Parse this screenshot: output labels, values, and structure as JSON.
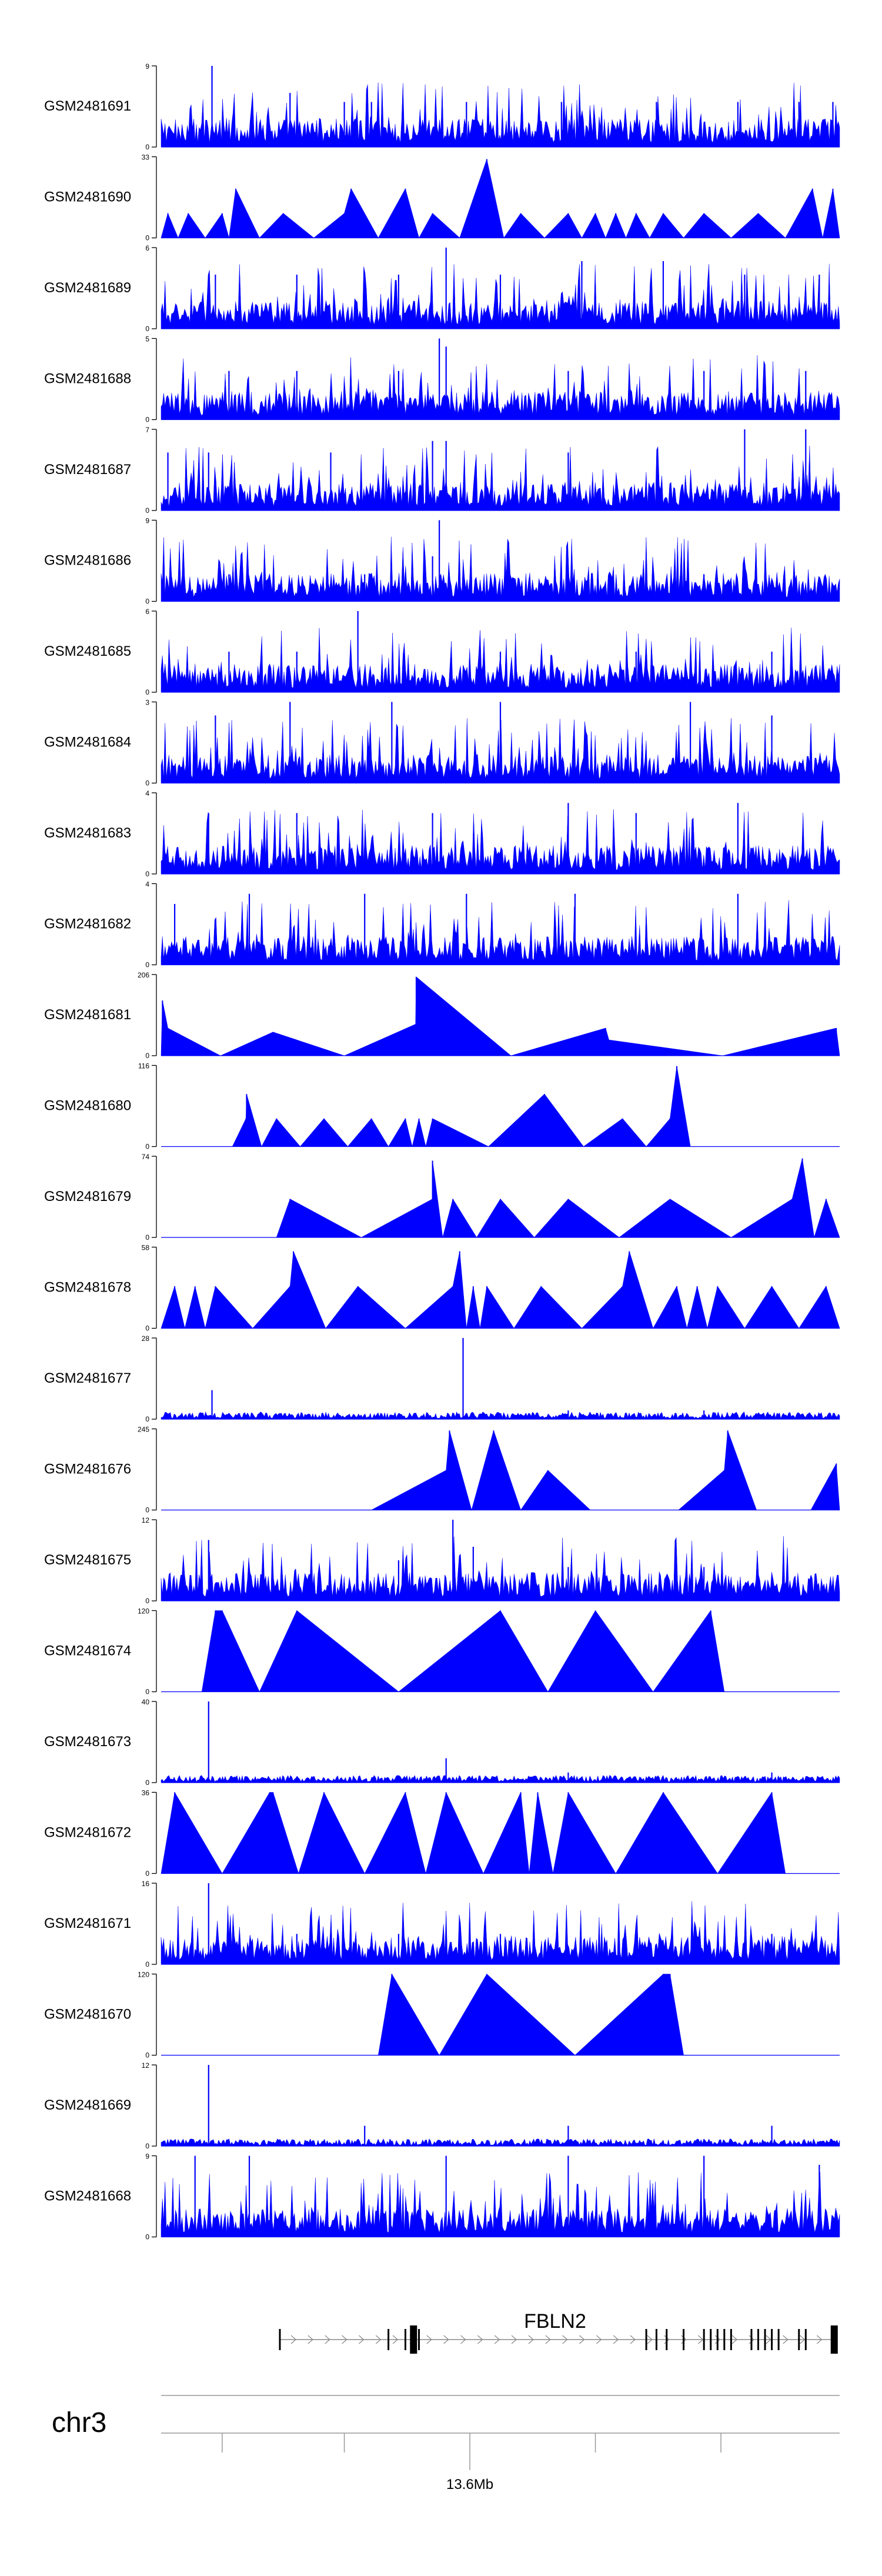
{
  "chart_data": {
    "type": "area",
    "fill_color": "#0000ff",
    "axis_color": "#000000",
    "tracks": [
      {
        "name": "GSM2481691",
        "ymax_label": "9",
        "ymin_label": "0",
        "ymax": 9,
        "pattern": "dense",
        "peaks": [
          [
            0.075,
            9
          ],
          [
            0.19,
            6
          ],
          [
            0.27,
            5
          ],
          [
            0.31,
            5
          ],
          [
            0.45,
            5
          ],
          [
            0.59,
            5
          ],
          [
            0.73,
            5
          ],
          [
            0.85,
            5
          ],
          [
            0.94,
            5
          ],
          [
            0.99,
            5
          ]
        ]
      },
      {
        "name": "GSM2481690",
        "ymax_label": "33",
        "ymin_label": "0",
        "ymax": 33,
        "pattern": "triangles",
        "peaks": [
          [
            0.01,
            10
          ],
          [
            0.04,
            10
          ],
          [
            0.09,
            10
          ],
          [
            0.11,
            20
          ],
          [
            0.18,
            10
          ],
          [
            0.27,
            10
          ],
          [
            0.28,
            20
          ],
          [
            0.36,
            20
          ],
          [
            0.4,
            10
          ],
          [
            0.48,
            32
          ],
          [
            0.53,
            10
          ],
          [
            0.6,
            10
          ],
          [
            0.64,
            10
          ],
          [
            0.67,
            10
          ],
          [
            0.7,
            10
          ],
          [
            0.74,
            10
          ],
          [
            0.8,
            10
          ],
          [
            0.88,
            10
          ],
          [
            0.96,
            20
          ],
          [
            0.99,
            20
          ]
        ]
      },
      {
        "name": "GSM2481689",
        "ymax_label": "6",
        "ymin_label": "0",
        "ymax": 6,
        "pattern": "dense",
        "peaks": [
          [
            0.08,
            4
          ],
          [
            0.2,
            4
          ],
          [
            0.35,
            4
          ],
          [
            0.42,
            6
          ],
          [
            0.5,
            4
          ],
          [
            0.62,
            5
          ],
          [
            0.74,
            5
          ],
          [
            0.86,
            4
          ],
          [
            0.97,
            4
          ]
        ]
      },
      {
        "name": "GSM2481688",
        "ymax_label": "5",
        "ymin_label": "0",
        "ymax": 5,
        "pattern": "dense",
        "peaks": [
          [
            0.1,
            3
          ],
          [
            0.2,
            3
          ],
          [
            0.35,
            3
          ],
          [
            0.41,
            5
          ],
          [
            0.42,
            4.5
          ],
          [
            0.6,
            3
          ],
          [
            0.8,
            3
          ],
          [
            0.95,
            3
          ]
        ]
      },
      {
        "name": "GSM2481687",
        "ymax_label": "7",
        "ymin_label": "0",
        "ymax": 7,
        "pattern": "dense",
        "peaks": [
          [
            0.01,
            5
          ],
          [
            0.07,
            5
          ],
          [
            0.25,
            5
          ],
          [
            0.4,
            6
          ],
          [
            0.42,
            6
          ],
          [
            0.6,
            5
          ],
          [
            0.86,
            7
          ],
          [
            0.95,
            7
          ]
        ]
      },
      {
        "name": "GSM2481686",
        "ymax_label": "9",
        "ymin_label": "0",
        "ymax": 9,
        "pattern": "dense",
        "peaks": [
          [
            0.1,
            3
          ],
          [
            0.3,
            3
          ],
          [
            0.4,
            5
          ],
          [
            0.41,
            9
          ],
          [
            0.6,
            3
          ],
          [
            0.8,
            3
          ]
        ]
      },
      {
        "name": "GSM2481685",
        "ymax_label": "6",
        "ymin_label": "0",
        "ymax": 6,
        "pattern": "dense",
        "peaks": [
          [
            0.1,
            3
          ],
          [
            0.2,
            3
          ],
          [
            0.29,
            6
          ],
          [
            0.5,
            3
          ],
          [
            0.7,
            3
          ],
          [
            0.9,
            3
          ]
        ]
      },
      {
        "name": "GSM2481684",
        "ymax_label": "3",
        "ymin_label": "0",
        "ymax": 3,
        "pattern": "dense",
        "peaks": [
          [
            0.08,
            2.5
          ],
          [
            0.19,
            3
          ],
          [
            0.34,
            3
          ],
          [
            0.5,
            3
          ],
          [
            0.78,
            3
          ],
          [
            0.9,
            2.5
          ]
        ]
      },
      {
        "name": "GSM2481683",
        "ymax_label": "4",
        "ymin_label": "0",
        "ymax": 4,
        "pattern": "dense",
        "peaks": [
          [
            0.07,
            3
          ],
          [
            0.2,
            3
          ],
          [
            0.4,
            3
          ],
          [
            0.6,
            3.5
          ],
          [
            0.7,
            3
          ],
          [
            0.85,
            3.5
          ]
        ]
      },
      {
        "name": "GSM2481682",
        "ymax_label": "4",
        "ymin_label": "0",
        "ymax": 4,
        "pattern": "dense",
        "peaks": [
          [
            0.02,
            3
          ],
          [
            0.13,
            3.5
          ],
          [
            0.3,
            3.5
          ],
          [
            0.45,
            3.5
          ],
          [
            0.61,
            3.5
          ],
          [
            0.85,
            3.5
          ]
        ]
      },
      {
        "name": "GSM2481681",
        "ymax_label": "206",
        "ymin_label": "0",
        "ymax": 206,
        "pattern": "triangles",
        "peaks": [
          [
            0.002,
            140
          ],
          [
            0.01,
            70
          ],
          [
            0.165,
            60
          ],
          [
            0.375,
            80
          ],
          [
            0.376,
            200
          ],
          [
            0.655,
            70
          ],
          [
            0.66,
            40
          ],
          [
            0.995,
            70
          ]
        ]
      },
      {
        "name": "GSM2481680",
        "ymax_label": "116",
        "ymin_label": "0",
        "ymax": 116,
        "pattern": "triangles",
        "peaks": [
          [
            0.125,
            40
          ],
          [
            0.126,
            75
          ],
          [
            0.17,
            40
          ],
          [
            0.24,
            40
          ],
          [
            0.31,
            40
          ],
          [
            0.36,
            40
          ],
          [
            0.38,
            40
          ],
          [
            0.4,
            40
          ],
          [
            0.565,
            75
          ],
          [
            0.68,
            40
          ],
          [
            0.75,
            40
          ],
          [
            0.76,
            115
          ]
        ]
      },
      {
        "name": "GSM2481679",
        "ymax_label": "74",
        "ymin_label": "0",
        "ymax": 74,
        "pattern": "triangles",
        "peaks": [
          [
            0.19,
            35
          ],
          [
            0.4,
            35
          ],
          [
            0.4,
            70
          ],
          [
            0.43,
            35
          ],
          [
            0.5,
            35
          ],
          [
            0.6,
            35
          ],
          [
            0.75,
            35
          ],
          [
            0.93,
            35
          ],
          [
            0.945,
            72
          ],
          [
            0.98,
            35
          ]
        ]
      },
      {
        "name": "GSM2481678",
        "ymax_label": "58",
        "ymin_label": "0",
        "ymax": 58,
        "pattern": "triangles",
        "peaks": [
          [
            0.02,
            30
          ],
          [
            0.05,
            30
          ],
          [
            0.08,
            30
          ],
          [
            0.19,
            30
          ],
          [
            0.195,
            55
          ],
          [
            0.29,
            30
          ],
          [
            0.43,
            30
          ],
          [
            0.44,
            55
          ],
          [
            0.46,
            30
          ],
          [
            0.48,
            30
          ],
          [
            0.56,
            30
          ],
          [
            0.68,
            30
          ],
          [
            0.69,
            55
          ],
          [
            0.76,
            30
          ],
          [
            0.79,
            30
          ],
          [
            0.82,
            30
          ],
          [
            0.9,
            30
          ],
          [
            0.98,
            30
          ]
        ]
      },
      {
        "name": "GSM2481677",
        "ymax_label": "28",
        "ymin_label": "0",
        "ymax": 28,
        "pattern": "sparse",
        "peaks": [
          [
            0.075,
            10
          ],
          [
            0.445,
            28
          ],
          [
            0.6,
            3
          ],
          [
            0.8,
            3
          ]
        ]
      },
      {
        "name": "GSM2481676",
        "ymax_label": "245",
        "ymin_label": "0",
        "ymax": 245,
        "pattern": "triangles",
        "peaks": [
          [
            0.2,
            0
          ],
          [
            0.42,
            120
          ],
          [
            0.425,
            240
          ],
          [
            0.49,
            240
          ],
          [
            0.57,
            120
          ],
          [
            0.695,
            0
          ],
          [
            0.83,
            120
          ],
          [
            0.835,
            240
          ],
          [
            0.92,
            0
          ],
          [
            0.995,
            140
          ]
        ]
      },
      {
        "name": "GSM2481675",
        "ymax_label": "12",
        "ymin_label": "0",
        "ymax": 12,
        "pattern": "dense",
        "peaks": [
          [
            0.07,
            9
          ],
          [
            0.35,
            6
          ],
          [
            0.43,
            12
          ],
          [
            0.46,
            8
          ],
          [
            0.6,
            5
          ],
          [
            0.8,
            5
          ]
        ]
      },
      {
        "name": "GSM2481674",
        "ymax_label": "120",
        "ymin_label": "0",
        "ymax": 120,
        "pattern": "triangles",
        "peaks": [
          [
            0.08,
            120
          ],
          [
            0.09,
            120
          ],
          [
            0.2,
            120
          ],
          [
            0.5,
            120
          ],
          [
            0.64,
            120
          ],
          [
            0.81,
            120
          ]
        ]
      },
      {
        "name": "GSM2481673",
        "ymax_label": "40",
        "ymin_label": "0",
        "ymax": 40,
        "pattern": "sparse",
        "peaks": [
          [
            0.07,
            40
          ],
          [
            0.42,
            12
          ],
          [
            0.6,
            5
          ],
          [
            0.9,
            5
          ]
        ]
      },
      {
        "name": "GSM2481672",
        "ymax_label": "36",
        "ymin_label": "0",
        "ymax": 36,
        "pattern": "triangles",
        "peaks": [
          [
            0.02,
            36
          ],
          [
            0.16,
            36
          ],
          [
            0.165,
            36
          ],
          [
            0.24,
            36
          ],
          [
            0.36,
            36
          ],
          [
            0.42,
            36
          ],
          [
            0.53,
            36
          ],
          [
            0.555,
            36
          ],
          [
            0.6,
            36
          ],
          [
            0.74,
            36
          ],
          [
            0.9,
            36
          ]
        ]
      },
      {
        "name": "GSM2481671",
        "ymax_label": "16",
        "ymin_label": "0",
        "ymax": 16,
        "pattern": "dense",
        "peaks": [
          [
            0.07,
            16
          ],
          [
            0.2,
            6
          ],
          [
            0.35,
            6
          ],
          [
            0.5,
            6
          ],
          [
            0.7,
            6
          ],
          [
            0.9,
            6
          ]
        ]
      },
      {
        "name": "GSM2481670",
        "ymax_label": "120",
        "ymin_label": "0",
        "ymax": 120,
        "pattern": "triangles",
        "peaks": [
          [
            0.34,
            120
          ],
          [
            0.48,
            120
          ],
          [
            0.74,
            120
          ],
          [
            0.75,
            120
          ]
        ]
      },
      {
        "name": "GSM2481669",
        "ymax_label": "12",
        "ymin_label": "0",
        "ymax": 12,
        "pattern": "sparse",
        "peaks": [
          [
            0.07,
            12
          ],
          [
            0.3,
            3
          ],
          [
            0.6,
            3
          ],
          [
            0.9,
            3
          ]
        ]
      },
      {
        "name": "GSM2481668",
        "ymax_label": "9",
        "ymin_label": "0",
        "ymax": 9,
        "pattern": "dense",
        "peaks": [
          [
            0.05,
            9
          ],
          [
            0.13,
            9
          ],
          [
            0.42,
            9
          ],
          [
            0.6,
            9
          ],
          [
            0.8,
            9
          ],
          [
            0.97,
            8
          ]
        ]
      }
    ],
    "gene": {
      "name": "FBLN2",
      "start_frac": 0.175,
      "end_frac": 0.995,
      "exons_frac": [
        0.175,
        0.335,
        0.36,
        0.37,
        0.375,
        0.38,
        0.715,
        0.73,
        0.745,
        0.77,
        0.8,
        0.81,
        0.82,
        0.83,
        0.84,
        0.87,
        0.88,
        0.89,
        0.9,
        0.91,
        0.94,
        0.95,
        0.99,
        0.995
      ],
      "wide_exons_frac": [
        0.372,
        0.992
      ]
    },
    "axis": {
      "chromosome": "chr3",
      "tick_label": "13.6Mb",
      "tick_fracs": [
        0.09,
        0.27,
        0.455,
        0.64,
        0.825
      ]
    }
  }
}
